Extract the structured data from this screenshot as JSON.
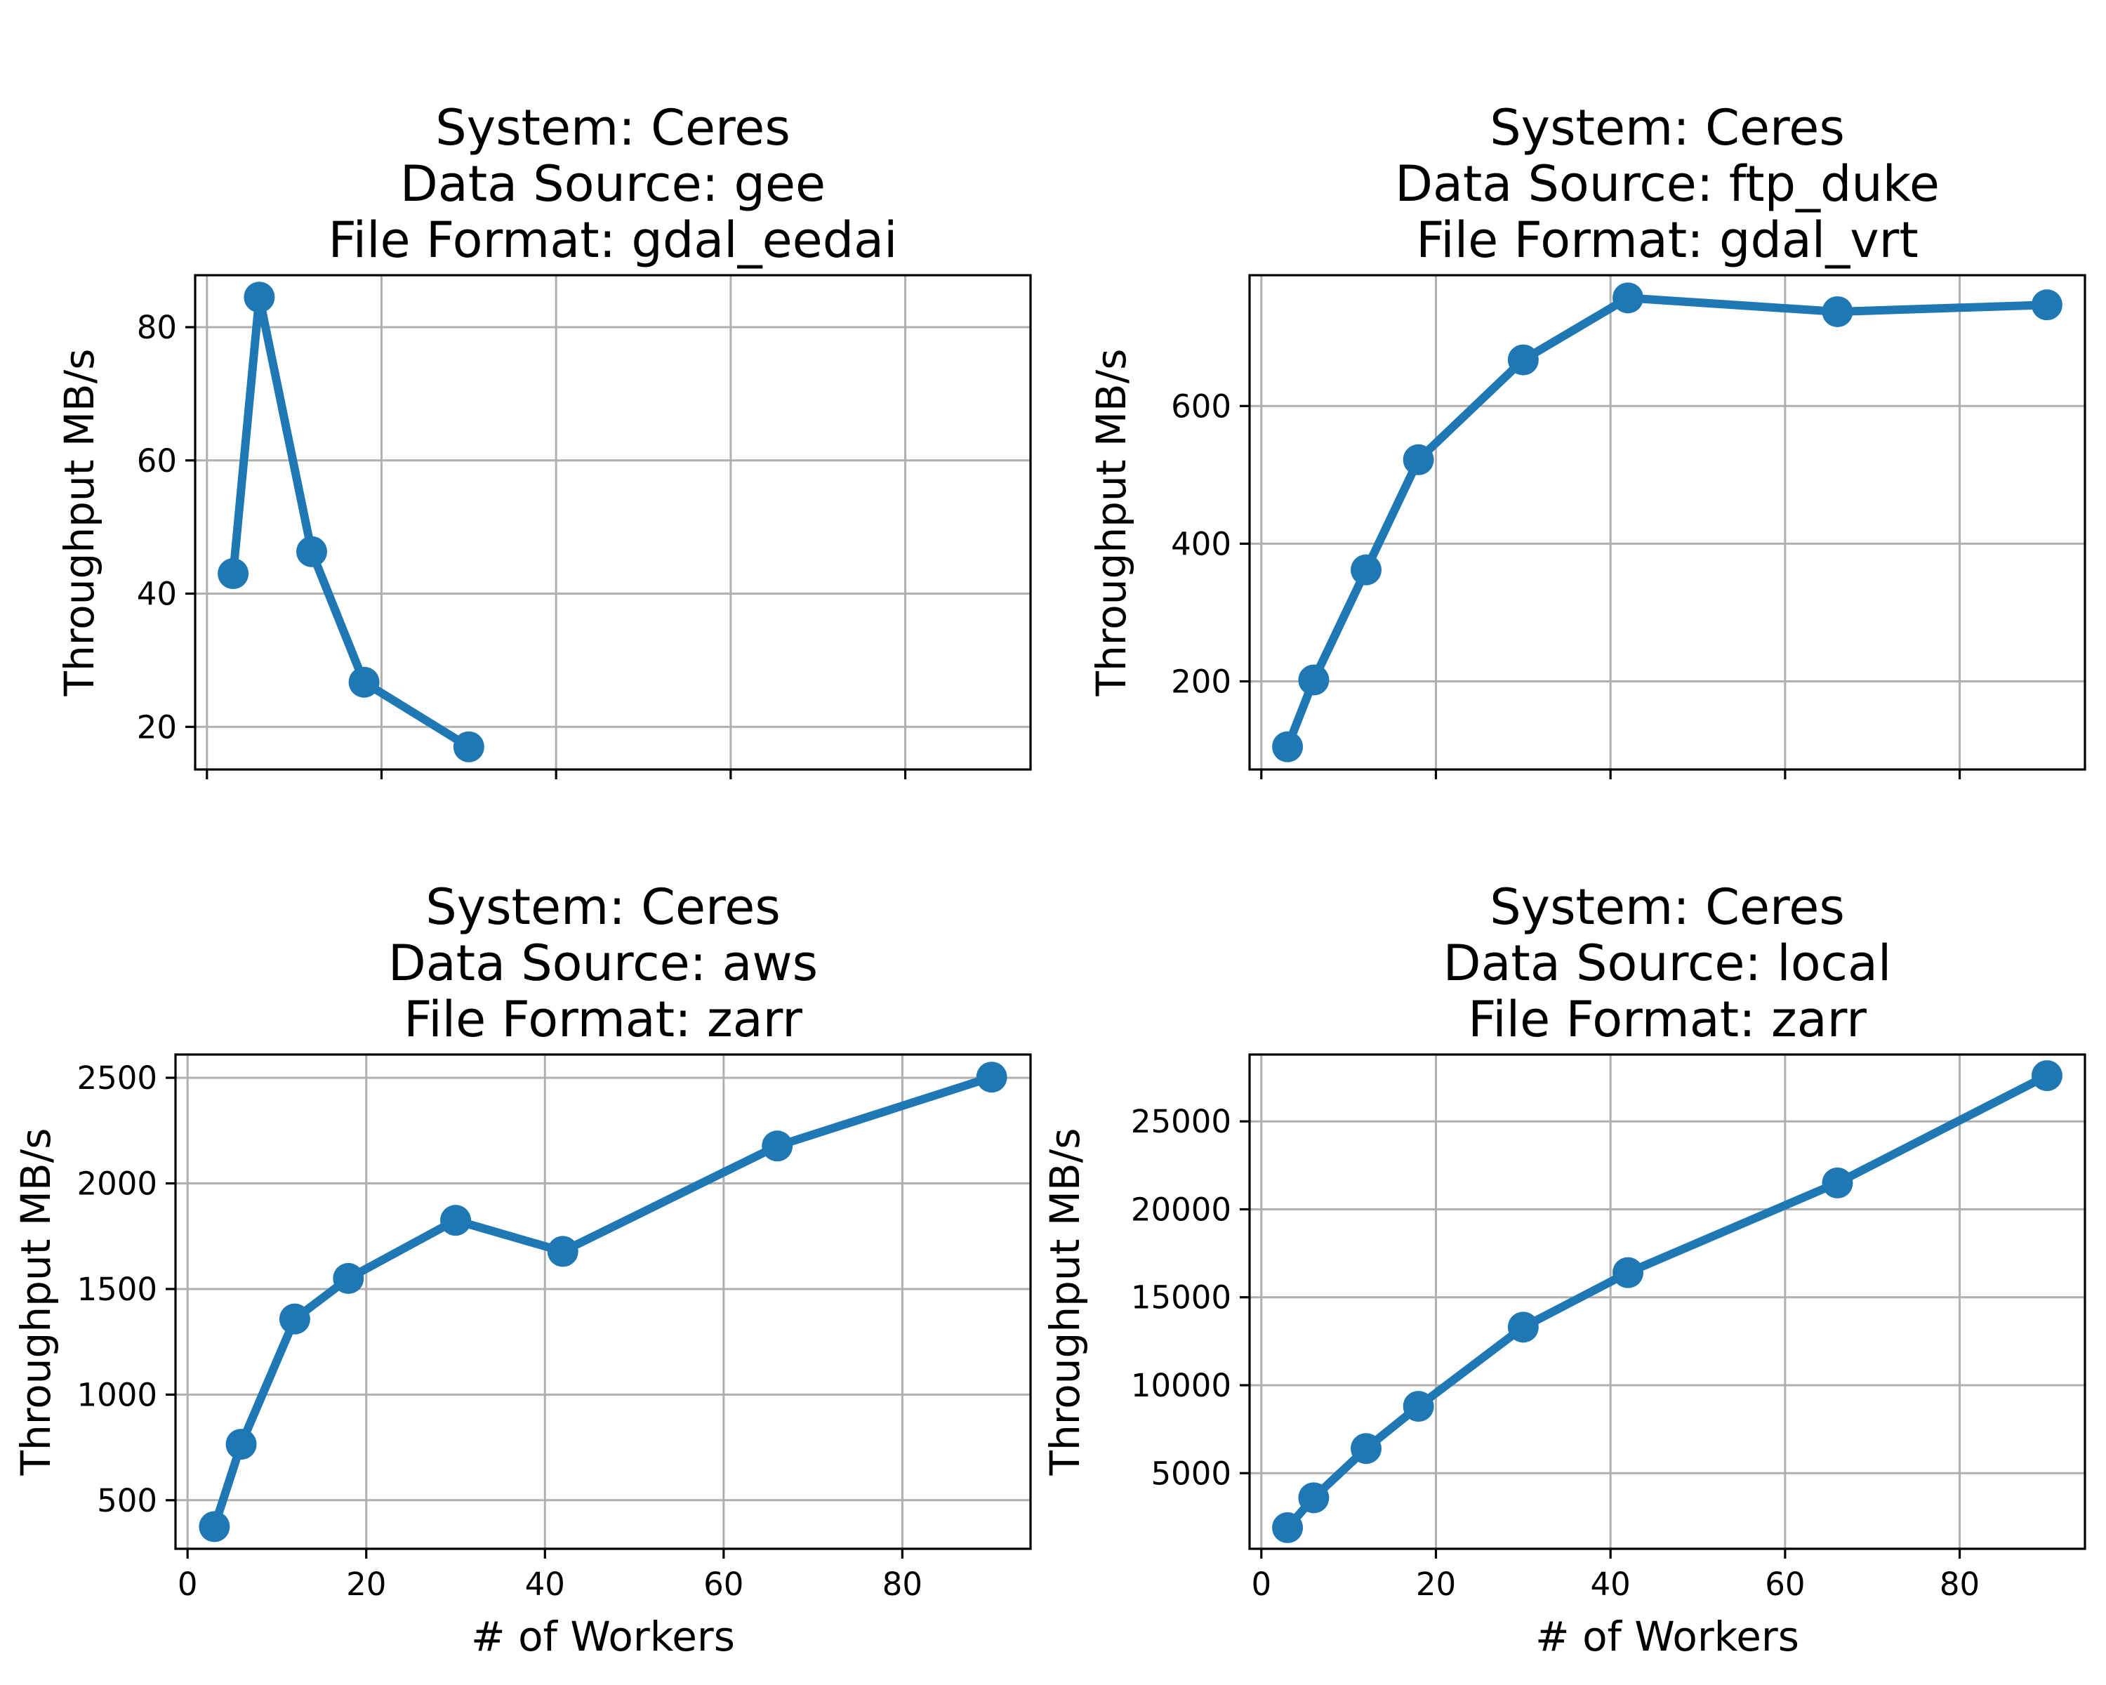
{
  "colors": {
    "series": "#1f77b4"
  },
  "chart_data": [
    {
      "type": "line",
      "title": [
        "System: Ceres",
        "Data Source: gee",
        "File Format: gdal_eedai"
      ],
      "xlabel": "",
      "ylabel": "Throughput MB/s",
      "xlim": [
        -1.35,
        94.35
      ],
      "ylim": [
        13.6,
        87.8
      ],
      "xticks": [
        0,
        20,
        40,
        60,
        80
      ],
      "show_xtick_labels": false,
      "yticks": [
        20,
        40,
        60,
        80
      ],
      "ytick_labels": [
        "20",
        "40",
        "60",
        "80"
      ],
      "grid": true,
      "series": [
        {
          "x": [
            3,
            6,
            12,
            18,
            30
          ],
          "y": [
            43,
            84.5,
            46.3,
            26.7,
            17
          ]
        }
      ]
    },
    {
      "type": "line",
      "title": [
        "System: Ceres",
        "Data Source: ftp_duke",
        "File Format: gdal_vrt"
      ],
      "xlabel": "",
      "ylabel": "Throughput MB/s",
      "xlim": [
        -1.35,
        94.35
      ],
      "ylim": [
        72,
        790
      ],
      "xticks": [
        0,
        20,
        40,
        60,
        80
      ],
      "show_xtick_labels": false,
      "yticks": [
        200,
        400,
        600
      ],
      "ytick_labels": [
        "200",
        "400",
        "600"
      ],
      "grid": true,
      "series": [
        {
          "x": [
            3,
            6,
            12,
            18,
            30,
            42,
            66,
            90
          ],
          "y": [
            105,
            202,
            362,
            522,
            667,
            757,
            737,
            747
          ]
        }
      ]
    },
    {
      "type": "line",
      "title": [
        "System: Ceres",
        "Data Source: aws",
        "File Format: zarr"
      ],
      "xlabel": "# of Workers",
      "ylabel": "Throughput MB/s",
      "xlim": [
        -1.35,
        94.35
      ],
      "ylim": [
        270,
        2610
      ],
      "xticks": [
        0,
        20,
        40,
        60,
        80
      ],
      "show_xtick_labels": true,
      "yticks": [
        500,
        1000,
        1500,
        2000,
        2500
      ],
      "ytick_labels": [
        "500",
        "1000",
        "1500",
        "2000",
        "2500"
      ],
      "grid": true,
      "series": [
        {
          "x": [
            3,
            6,
            12,
            18,
            30,
            42,
            66,
            90
          ],
          "y": [
            375,
            765,
            1358,
            1550,
            1825,
            1678,
            2177,
            2503
          ]
        }
      ]
    },
    {
      "type": "line",
      "title": [
        "System: Ceres",
        "Data Source: local",
        "File Format: zarr"
      ],
      "xlabel": "# of Workers",
      "ylabel": "Throughput MB/s",
      "xlim": [
        -1.35,
        94.35
      ],
      "ylim": [
        700,
        28800
      ],
      "xticks": [
        0,
        20,
        40,
        60,
        80
      ],
      "show_xtick_labels": true,
      "yticks": [
        5000,
        10000,
        15000,
        20000,
        25000
      ],
      "ytick_labels": [
        "5000",
        "10000",
        "15000",
        "20000",
        "25000"
      ],
      "grid": true,
      "series": [
        {
          "x": [
            3,
            6,
            12,
            18,
            30,
            42,
            66,
            90
          ],
          "y": [
            1900,
            3600,
            6400,
            8800,
            13300,
            16400,
            21500,
            27600
          ]
        }
      ]
    }
  ]
}
